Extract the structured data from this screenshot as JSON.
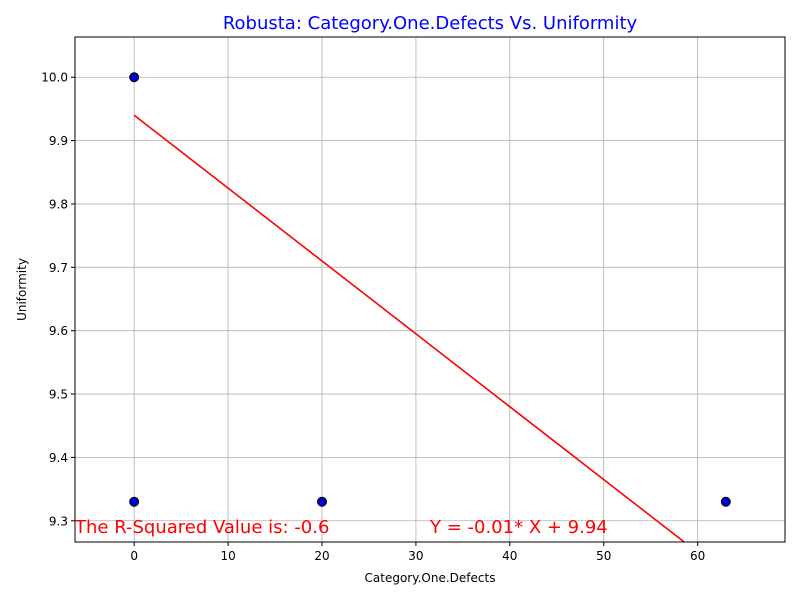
{
  "chart_data": {
    "type": "scatter",
    "title": "Robusta: Category.One.Defects Vs. Uniformity",
    "xlabel": "Category.One.Defects",
    "ylabel": "Uniformity",
    "xlim": [
      -6.3,
      69.3
    ],
    "ylim": [
      9.2665,
      10.0635
    ],
    "xticks": [
      0,
      10,
      20,
      30,
      40,
      50,
      60
    ],
    "yticks": [
      9.3,
      9.4,
      9.5,
      9.6,
      9.7,
      9.8,
      9.9,
      10.0
    ],
    "grid": true,
    "points": [
      {
        "x": 0,
        "y": 10.0
      },
      {
        "x": 0,
        "y": 9.33
      },
      {
        "x": 20,
        "y": 9.33
      },
      {
        "x": 63,
        "y": 9.33
      }
    ],
    "regression_line": {
      "x": [
        0,
        63
      ],
      "slope": -0.0115,
      "intercept": 9.94
    },
    "annotations": {
      "r_squared": "The R-Squared Value is: -0.6",
      "equation": "Y = -0.01* X + 9.94"
    },
    "colors": {
      "title": "#0000ff",
      "points_fill": "#0000cc",
      "points_edge": "#000000",
      "regression": "#ff0000",
      "annotations": "#ff0000",
      "grid": "#b0b0b0"
    }
  }
}
